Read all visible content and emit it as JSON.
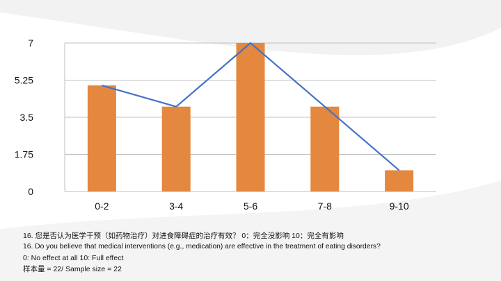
{
  "chart_data": {
    "type": "bar",
    "categories": [
      "0-2",
      "3-4",
      "5-6",
      "7-8",
      "9-10"
    ],
    "series": [
      {
        "type": "bar",
        "values": [
          5,
          4,
          7,
          4,
          1
        ],
        "color": "#E4873F"
      },
      {
        "type": "line",
        "values": [
          5,
          4,
          7,
          4,
          1
        ],
        "color": "#4472C4"
      }
    ],
    "yticks": [
      "0",
      "1.75",
      "3.5",
      "5.25",
      "7"
    ],
    "ylim": [
      0,
      7
    ],
    "grid": true,
    "legend": "none"
  },
  "caption": {
    "question_zh": "16. 您是否认为医学干预（如药物治疗）对进食障碍症的治疗有效？ 0：完全没影响 10：完全有影响",
    "question_en": "16. Do you believe that medical interventions (e.g., medication) are effective in the treatment of eating disorders?",
    "scale_note": "0: No effect at all 10: Full effect",
    "sample_size": "样本量 = 22/ Sample size = 22"
  },
  "colors": {
    "gridline": "#BFBFBF",
    "background_swoosh": "#EEEEEE"
  }
}
